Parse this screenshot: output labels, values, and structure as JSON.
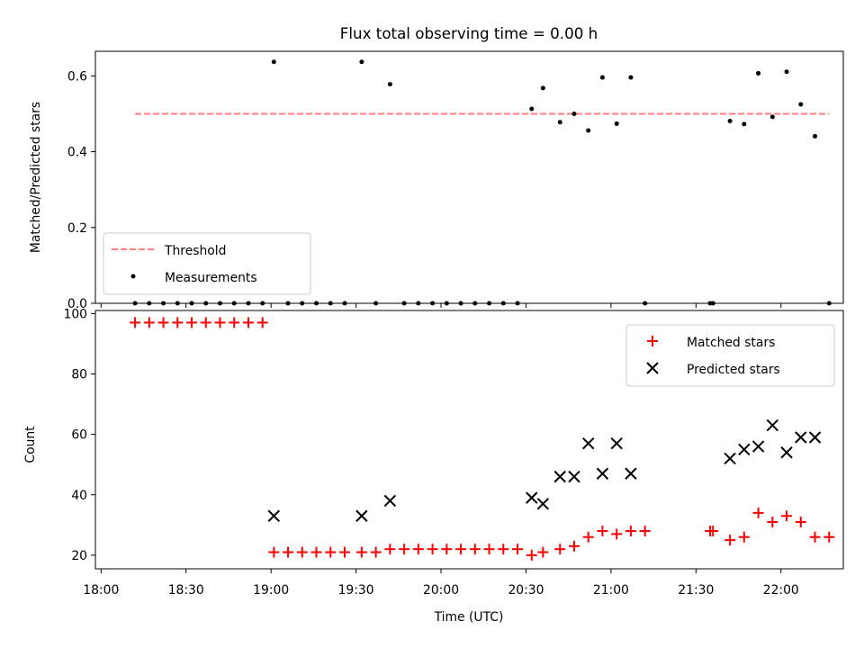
{
  "chart_data": {
    "title": "Flux total observing time = 0.00 h",
    "x_axis": {
      "label": "Time (UTC)",
      "range": [
        "17:58",
        "22:22"
      ],
      "ticks": [
        "18:00",
        "18:30",
        "19:00",
        "19:30",
        "20:00",
        "20:30",
        "21:00",
        "21:30",
        "22:00"
      ]
    },
    "panels": [
      {
        "type": "scatter",
        "ylabel": "Matched/Predicted stars",
        "ylim": [
          0,
          0.665
        ],
        "yticks": [
          "0.0",
          "0.2",
          "0.4",
          "0.6"
        ],
        "legend_position": "lower-left",
        "threshold": {
          "name": "Threshold",
          "value": 0.5,
          "x_start": "18:12",
          "x_end": "22:17",
          "color": "#ff7f7f"
        },
        "series": [
          {
            "name": "Measurements",
            "color": "#000000",
            "points": [
              [
                "18:12",
                0
              ],
              [
                "18:17",
                0
              ],
              [
                "18:22",
                0
              ],
              [
                "18:27",
                0
              ],
              [
                "18:32",
                0
              ],
              [
                "18:37",
                0
              ],
              [
                "18:42",
                0
              ],
              [
                "18:47",
                0
              ],
              [
                "18:52",
                0
              ],
              [
                "18:57",
                0
              ],
              [
                "19:01",
                0.637
              ],
              [
                "19:06",
                0
              ],
              [
                "19:11",
                0
              ],
              [
                "19:16",
                0
              ],
              [
                "19:21",
                0
              ],
              [
                "19:26",
                0
              ],
              [
                "19:32",
                0.637
              ],
              [
                "19:37",
                0
              ],
              [
                "19:42",
                0.578
              ],
              [
                "19:47",
                0
              ],
              [
                "19:52",
                0
              ],
              [
                "19:57",
                0
              ],
              [
                "20:02",
                0
              ],
              [
                "20:07",
                0
              ],
              [
                "20:12",
                0
              ],
              [
                "20:17",
                0
              ],
              [
                "20:22",
                0
              ],
              [
                "20:27",
                0
              ],
              [
                "20:32",
                0.513
              ],
              [
                "20:36",
                0.568
              ],
              [
                "20:42",
                0.478
              ],
              [
                "20:47",
                0.5
              ],
              [
                "20:52",
                0.456
              ],
              [
                "20:57",
                0.596
              ],
              [
                "21:02",
                0.474
              ],
              [
                "21:07",
                0.596
              ],
              [
                "21:12",
                0
              ],
              [
                "21:35",
                0
              ],
              [
                "21:36",
                0
              ],
              [
                "21:42",
                0.481
              ],
              [
                "21:47",
                0.473
              ],
              [
                "21:52",
                0.607
              ],
              [
                "21:57",
                0.492
              ],
              [
                "22:02",
                0.611
              ],
              [
                "22:07",
                0.525
              ],
              [
                "22:12",
                0.441
              ],
              [
                "22:17",
                0
              ]
            ]
          }
        ]
      },
      {
        "type": "scatter",
        "ylabel": "Count",
        "ylim": [
          15.5,
          101
        ],
        "yticks": [
          "20",
          "40",
          "60",
          "80",
          "100"
        ],
        "legend_position": "upper-right",
        "series": [
          {
            "name": "Matched stars",
            "marker": "plus",
            "color": "#ff0000",
            "points": [
              [
                "18:12",
                97
              ],
              [
                "18:17",
                97
              ],
              [
                "18:22",
                97
              ],
              [
                "18:27",
                97
              ],
              [
                "18:32",
                97
              ],
              [
                "18:37",
                97
              ],
              [
                "18:42",
                97
              ],
              [
                "18:47",
                97
              ],
              [
                "18:52",
                97
              ],
              [
                "18:57",
                97
              ],
              [
                "19:01",
                21
              ],
              [
                "19:06",
                21
              ],
              [
                "19:11",
                21
              ],
              [
                "19:16",
                21
              ],
              [
                "19:21",
                21
              ],
              [
                "19:26",
                21
              ],
              [
                "19:32",
                21
              ],
              [
                "19:37",
                21
              ],
              [
                "19:42",
                22
              ],
              [
                "19:47",
                22
              ],
              [
                "19:52",
                22
              ],
              [
                "19:57",
                22
              ],
              [
                "20:02",
                22
              ],
              [
                "20:07",
                22
              ],
              [
                "20:12",
                22
              ],
              [
                "20:17",
                22
              ],
              [
                "20:22",
                22
              ],
              [
                "20:27",
                22
              ],
              [
                "20:32",
                20
              ],
              [
                "20:36",
                21
              ],
              [
                "20:42",
                22
              ],
              [
                "20:47",
                23
              ],
              [
                "20:52",
                26
              ],
              [
                "20:57",
                28
              ],
              [
                "21:02",
                27
              ],
              [
                "21:07",
                28
              ],
              [
                "21:12",
                28
              ],
              [
                "21:35",
                28
              ],
              [
                "21:36",
                28
              ],
              [
                "21:42",
                25
              ],
              [
                "21:47",
                26
              ],
              [
                "21:52",
                34
              ],
              [
                "21:57",
                31
              ],
              [
                "22:02",
                33
              ],
              [
                "22:07",
                31
              ],
              [
                "22:12",
                26
              ],
              [
                "22:17",
                26
              ]
            ]
          },
          {
            "name": "Predicted stars",
            "marker": "x",
            "color": "#000000",
            "points": [
              [
                "19:01",
                33
              ],
              [
                "19:32",
                33
              ],
              [
                "19:42",
                38
              ],
              [
                "20:32",
                39
              ],
              [
                "20:36",
                37
              ],
              [
                "20:42",
                46
              ],
              [
                "20:47",
                46
              ],
              [
                "20:52",
                57
              ],
              [
                "20:57",
                47
              ],
              [
                "21:02",
                57
              ],
              [
                "21:07",
                47
              ],
              [
                "21:42",
                52
              ],
              [
                "21:47",
                55
              ],
              [
                "21:52",
                56
              ],
              [
                "21:57",
                63
              ],
              [
                "22:02",
                54
              ],
              [
                "22:07",
                59
              ],
              [
                "22:12",
                59
              ]
            ]
          }
        ]
      }
    ]
  }
}
